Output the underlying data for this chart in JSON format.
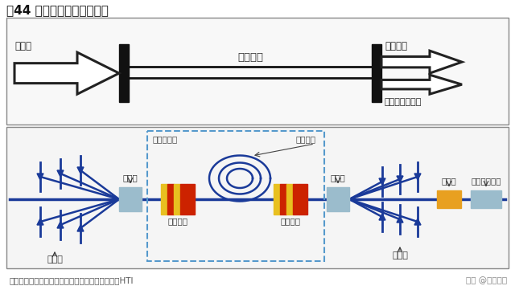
{
  "title": "图44 光纤激光器基本原理图",
  "bg_color": "#ffffff",
  "source": "资料来源：《光纤激光器及其应用》、创鑫激光、HTI",
  "watermark": "头条 @未来智库",
  "label_pump_top": "泵浦光",
  "label_doped_fiber": "掺杂光纤",
  "label_laser_out": "激光输出",
  "label_unconverted": "未转换的泵浦光",
  "label_resonator": "谐振腔结构",
  "label_active_fiber": "有源光纤",
  "label_combiner1": "合束器",
  "label_combiner2": "合束器",
  "label_high_mirror": "高反光栅",
  "label_low_mirror": "低反光栅",
  "label_pump_bottom1": "泵浦光",
  "label_pump_bottom2": "泵浦光",
  "label_modulator": "调模器",
  "label_output_cable": "激光输出跳线",
  "diode_color": "#1a3a99",
  "combiner_color": "#9bbccc",
  "modulator_color": "#e8a020",
  "cable_color": "#9bbccc",
  "main_line_color": "#1a3a99",
  "grating_yellow": "#e8c020",
  "grating_red": "#cc2200",
  "fiber_coil_color": "#1a3a99",
  "dashed_color": "#5599cc"
}
